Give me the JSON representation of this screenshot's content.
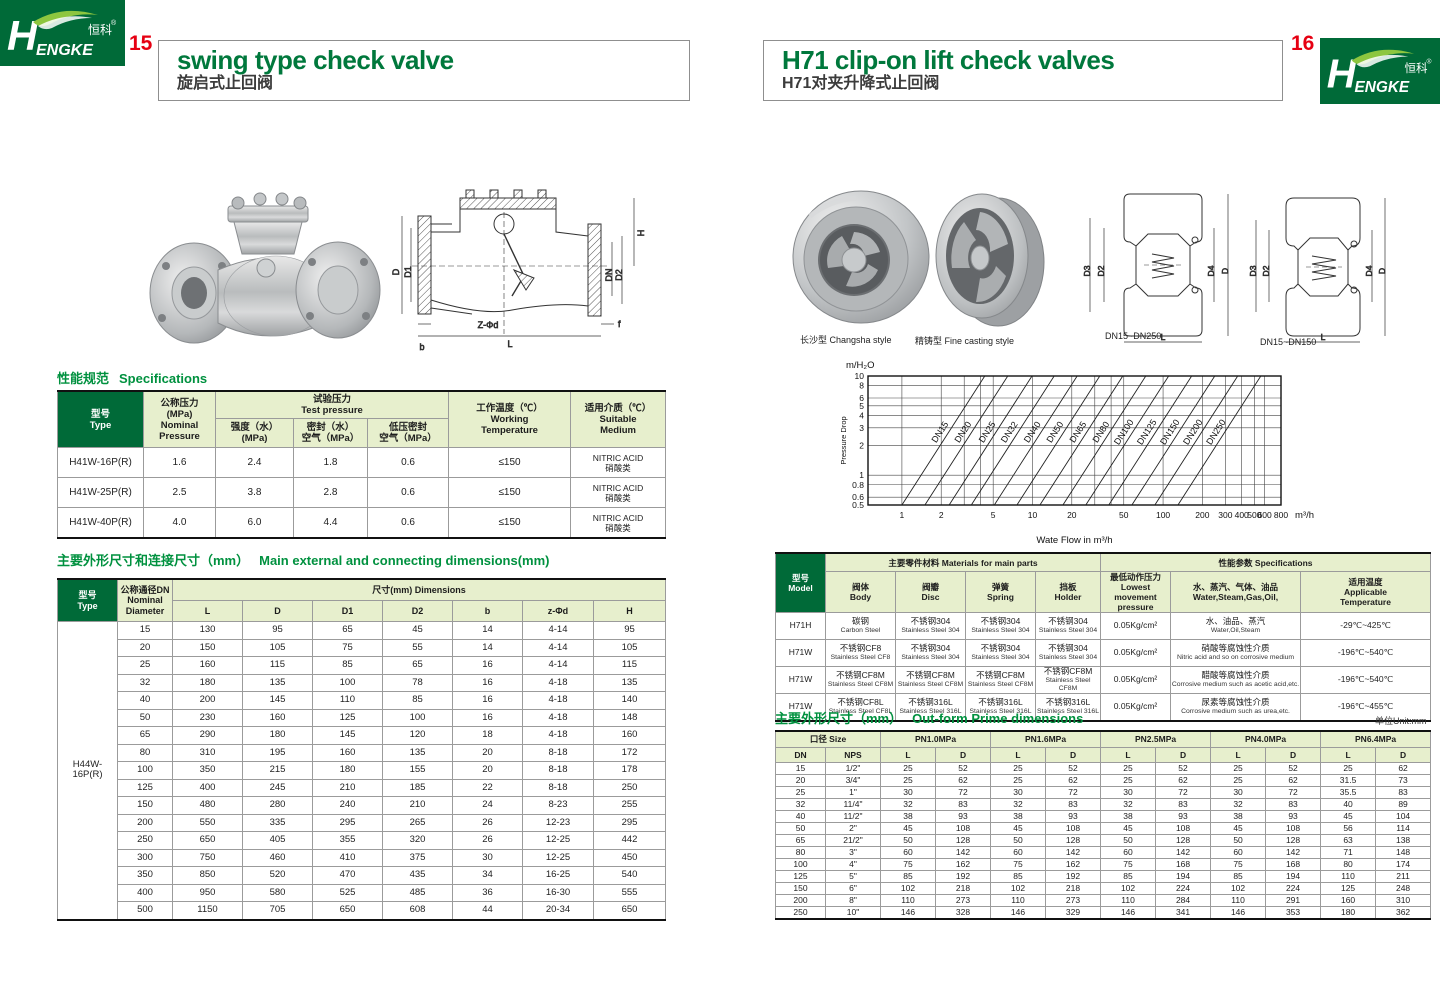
{
  "header": {
    "left": {
      "page_num": "15",
      "title": "swing type check valve",
      "subtitle": "旋启式止回阀"
    },
    "right": {
      "page_num": "16",
      "title": "H71 clip-on lift check valves",
      "subtitle": "H71对夹升降式止回阀"
    },
    "logo": {
      "h": "H",
      "engke": "ENGKE",
      "cn": "恒科",
      "reg": "®"
    },
    "colors": {
      "green": "#006a38",
      "light_green": "#e7efcd",
      "red": "#e60012",
      "title_green": "#00783c"
    }
  },
  "left_page": {
    "drawing_labels": {
      "D": "D",
      "D1": "D1",
      "H": "H",
      "DN": "DN",
      "D2": "D2",
      "Z": "Z-Φd",
      "b": "b",
      "L": "L",
      "f": "f"
    },
    "specs": {
      "title_cn": "性能规范",
      "title_en": "Specifications",
      "h_type": "型号\nType",
      "h_nominal": "公称压力\n(MPa)\nNominal\nPressure",
      "h_test": "试验压力\nTest pressure",
      "h_strength": "强度（水）\n(MPa)",
      "h_seal": "密封（水）\n空气（MPa）",
      "h_low": "低压密封\n空气（MPa）",
      "h_temp": "工作温度（℃）\nWorking\nTemperature",
      "h_medium": "适用介质（℃）\nSuitable\nMedium",
      "rows": [
        [
          "H41W-16P(R)",
          "1.6",
          "2.4",
          "1.8",
          "0.6",
          "≤150",
          "NITRIC ACID\n硝酸类"
        ],
        [
          "H41W-25P(R)",
          "2.5",
          "3.8",
          "2.8",
          "0.6",
          "≤150",
          "NITRIC ACID\n硝酸类"
        ],
        [
          "H41W-40P(R)",
          "4.0",
          "6.0",
          "4.4",
          "0.6",
          "≤150",
          "NITRIC ACID\n硝酸类"
        ]
      ]
    },
    "dims": {
      "title_cn": "主要外形尺寸和连接尺寸（mm）",
      "title_en": "Main external and connecting dimensions(mm)",
      "h_type": "型号\nType",
      "h_dn": "公称通径DN\nNominal\nDiameter",
      "h_dims": "尺寸(mm) Dimensions",
      "cols": [
        "L",
        "D",
        "D1",
        "D2",
        "b",
        "z-Φd",
        "H"
      ],
      "type_value": "H44W-16P(R)",
      "rows": [
        [
          "15",
          "130",
          "95",
          "65",
          "45",
          "14",
          "4-14",
          "95"
        ],
        [
          "20",
          "150",
          "105",
          "75",
          "55",
          "14",
          "4-14",
          "105"
        ],
        [
          "25",
          "160",
          "115",
          "85",
          "65",
          "16",
          "4-14",
          "115"
        ],
        [
          "32",
          "180",
          "135",
          "100",
          "78",
          "16",
          "4-18",
          "135"
        ],
        [
          "40",
          "200",
          "145",
          "110",
          "85",
          "16",
          "4-18",
          "140"
        ],
        [
          "50",
          "230",
          "160",
          "125",
          "100",
          "16",
          "4-18",
          "148"
        ],
        [
          "65",
          "290",
          "180",
          "145",
          "120",
          "18",
          "4-18",
          "160"
        ],
        [
          "80",
          "310",
          "195",
          "160",
          "135",
          "20",
          "8-18",
          "172"
        ],
        [
          "100",
          "350",
          "215",
          "180",
          "155",
          "20",
          "8-18",
          "178"
        ],
        [
          "125",
          "400",
          "245",
          "210",
          "185",
          "22",
          "8-18",
          "250"
        ],
        [
          "150",
          "480",
          "280",
          "240",
          "210",
          "24",
          "8-23",
          "255"
        ],
        [
          "200",
          "550",
          "335",
          "295",
          "265",
          "26",
          "12-23",
          "295"
        ],
        [
          "250",
          "650",
          "405",
          "355",
          "320",
          "26",
          "12-25",
          "442"
        ],
        [
          "300",
          "750",
          "460",
          "410",
          "375",
          "30",
          "12-25",
          "450"
        ],
        [
          "350",
          "850",
          "520",
          "470",
          "435",
          "34",
          "16-25",
          "540"
        ],
        [
          "400",
          "950",
          "580",
          "525",
          "485",
          "36",
          "16-30",
          "555"
        ],
        [
          "500",
          "1150",
          "705",
          "650",
          "608",
          "44",
          "20-34",
          "650"
        ]
      ]
    }
  },
  "right_page": {
    "captions": {
      "photo1": "长沙型 Changsha style",
      "photo2": "精铸型 Fine casting style",
      "drawing1": "DN15~DN250",
      "drawing2": "DN15~DN150"
    },
    "drawing_labels": {
      "D3": "D3",
      "D2": "D2",
      "D4": "D4",
      "D": "D",
      "L": "L"
    },
    "materials": {
      "h_model": "型号\nModel",
      "h_group_materials": "主要零件材料 Materials for main parts",
      "h_group_specs": "性能参数 Specifications",
      "h_body": "阀体\nBody",
      "h_disc": "阀瓣\nDisc",
      "h_spring": "弹簧\nSpring",
      "h_holder": "挡板\nHolder",
      "h_pressure": "最低动作压力\nLowest movement\npressure",
      "h_medium": "水、蒸汽、气体、油品\nWater,Steam,Gas,Oil,",
      "h_temp": "适用温度\nApplicable\nTemperature",
      "rows": [
        {
          "model": "H71H",
          "parts": [
            [
              "碳钢",
              "Carbon Steel"
            ],
            [
              "不锈钢304",
              "Stainless Steel 304"
            ],
            [
              "不锈钢304",
              "Stainless Steel 304"
            ],
            [
              "不锈钢304",
              "Stainless Steel 304"
            ]
          ],
          "pressure": "0.05Kg/cm²",
          "medium_cn": "水、油品、蒸汽",
          "medium_en": "Water,Oil,Steam",
          "temp": "-29℃~425℃"
        },
        {
          "model": "H71W",
          "parts": [
            [
              "不锈钢CF8",
              "Stainless Steel CF8"
            ],
            [
              "不锈钢304",
              "Stainless Steel 304"
            ],
            [
              "不锈钢304",
              "Stainless Steel 304"
            ],
            [
              "不锈钢304",
              "Stainless Steel 304"
            ]
          ],
          "pressure": "0.05Kg/cm²",
          "medium_cn": "硝酸等腐蚀性介质",
          "medium_en": "Nitric acid and so on corrosive medium",
          "temp": "-196℃~540℃"
        },
        {
          "model": "H71W",
          "parts": [
            [
              "不锈钢CF8M",
              "Stainless Steel CF8M"
            ],
            [
              "不锈钢CF8M",
              "Stainless Steel CF8M"
            ],
            [
              "不锈钢CF8M",
              "Stainless Steel CF8M"
            ],
            [
              "不锈钢CF8M",
              "Stainless Steel CF8M"
            ]
          ],
          "pressure": "0.05Kg/cm²",
          "medium_cn": "醋酸等腐蚀性介质",
          "medium_en": "Corrosive medium such as acetic acid,etc.",
          "temp": "-196℃~540℃"
        },
        {
          "model": "H71W",
          "parts": [
            [
              "不锈钢CF8L",
              "Stainless Steel CF8L"
            ],
            [
              "不锈钢316L",
              "Stainless Steel 316L"
            ],
            [
              "不锈钢316L",
              "Stainless Steel 316L"
            ],
            [
              "不锈钢316L",
              "Stainless Steel 316L"
            ]
          ],
          "pressure": "0.05Kg/cm²",
          "medium_cn": "尿素等腐蚀性介质",
          "medium_en": "Corrosive medium such as urea,etc.",
          "temp": "-196℃~455℃"
        }
      ]
    },
    "outform": {
      "title_cn": "主要外形尺寸（mm）",
      "title_en": "Out-form Prime dimensions",
      "unit": "单位Unit:mm",
      "h_size": "口径 Size",
      "h_dn": "DN",
      "h_nps": "NPS",
      "pn_groups": [
        "PN1.0MPa",
        "PN1.6MPa",
        "PN2.5MPa",
        "PN4.0MPa",
        "PN6.4MPa"
      ],
      "h_l": "L",
      "h_d": "D",
      "rows": [
        [
          "15",
          "1/2\"",
          "25",
          "52",
          "25",
          "52",
          "25",
          "52",
          "25",
          "52",
          "25",
          "62"
        ],
        [
          "20",
          "3/4\"",
          "25",
          "62",
          "25",
          "62",
          "25",
          "62",
          "25",
          "62",
          "31.5",
          "73"
        ],
        [
          "25",
          "1\"",
          "30",
          "72",
          "30",
          "72",
          "30",
          "72",
          "30",
          "72",
          "35.5",
          "83"
        ],
        [
          "32",
          "11/4\"",
          "32",
          "83",
          "32",
          "83",
          "32",
          "83",
          "32",
          "83",
          "40",
          "89"
        ],
        [
          "40",
          "11/2\"",
          "38",
          "93",
          "38",
          "93",
          "38",
          "93",
          "38",
          "93",
          "45",
          "104"
        ],
        [
          "50",
          "2\"",
          "45",
          "108",
          "45",
          "108",
          "45",
          "108",
          "45",
          "108",
          "56",
          "114"
        ],
        [
          "65",
          "21/2\"",
          "50",
          "128",
          "50",
          "128",
          "50",
          "128",
          "50",
          "128",
          "63",
          "138"
        ],
        [
          "80",
          "3\"",
          "60",
          "142",
          "60",
          "142",
          "60",
          "142",
          "60",
          "142",
          "71",
          "148"
        ],
        [
          "100",
          "4\"",
          "75",
          "162",
          "75",
          "162",
          "75",
          "168",
          "75",
          "168",
          "80",
          "174"
        ],
        [
          "125",
          "5\"",
          "85",
          "192",
          "85",
          "192",
          "85",
          "194",
          "85",
          "194",
          "110",
          "211"
        ],
        [
          "150",
          "6\"",
          "102",
          "218",
          "102",
          "218",
          "102",
          "224",
          "102",
          "224",
          "125",
          "248"
        ],
        [
          "200",
          "8\"",
          "110",
          "273",
          "110",
          "273",
          "110",
          "284",
          "110",
          "291",
          "160",
          "310"
        ],
        [
          "250",
          "10\"",
          "146",
          "328",
          "146",
          "329",
          "146",
          "341",
          "146",
          "353",
          "180",
          "362"
        ]
      ]
    }
  },
  "chart_data": {
    "type": "line",
    "scale": "log-log",
    "title": "",
    "ylabel": "Pressure Drop",
    "y_unit_label": "m/H₂O",
    "xlabel": "Wate Flow in m³/h",
    "x_unit_label": "m³/h",
    "xlim": [
      0.55,
      800
    ],
    "ylim": [
      0.5,
      10
    ],
    "x_ticks": [
      1,
      2,
      5,
      10,
      20,
      50,
      100,
      200,
      300,
      400,
      500,
      600,
      800
    ],
    "y_ticks": [
      10,
      8,
      6,
      5,
      4,
      3,
      2,
      1,
      0.8,
      0.6,
      0.5
    ],
    "x_grid": [
      1,
      2,
      3,
      4,
      5,
      10,
      20,
      30,
      40,
      50,
      100,
      200,
      300,
      400,
      500,
      600,
      800
    ],
    "y_grid": [
      0.5,
      0.6,
      0.8,
      1,
      2,
      3,
      4,
      5,
      6,
      8,
      10
    ],
    "slope": 2.05,
    "label_y": 2.5,
    "series": [
      {
        "name": "DN15",
        "x0": 1.0
      },
      {
        "name": "DN20",
        "x0": 1.5
      },
      {
        "name": "DN25",
        "x0": 2.3
      },
      {
        "name": "DN32",
        "x0": 3.4
      },
      {
        "name": "DN40",
        "x0": 5.1
      },
      {
        "name": "DN50",
        "x0": 7.6
      },
      {
        "name": "DN65",
        "x0": 11.4
      },
      {
        "name": "DN80",
        "x0": 17.1
      },
      {
        "name": "DN100",
        "x0": 25.6
      },
      {
        "name": "DN125",
        "x0": 38.4
      },
      {
        "name": "DN150",
        "x0": 57.7
      },
      {
        "name": "DN200",
        "x0": 86.5
      },
      {
        "name": "DN250",
        "x0": 130
      }
    ]
  }
}
